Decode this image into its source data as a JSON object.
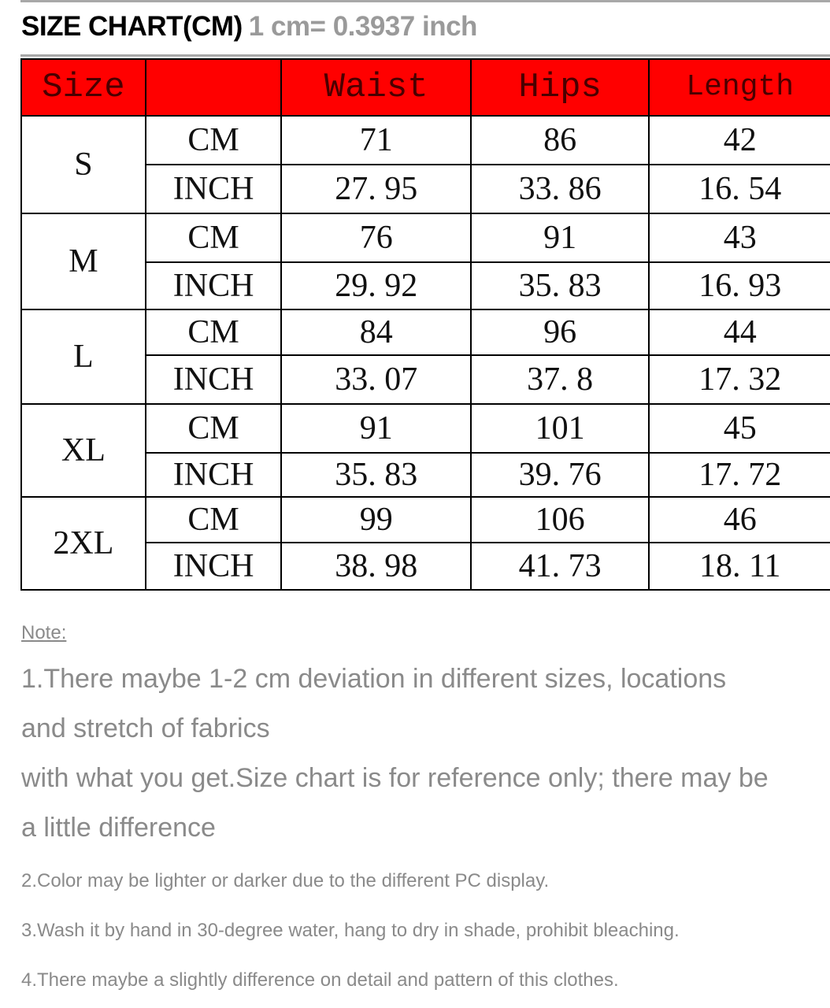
{
  "title": {
    "main": "SIZE CHART(CM)",
    "sub": "1 cm= 0.3937 inch"
  },
  "table": {
    "headers": [
      "Size",
      "",
      "Waist",
      "Hips",
      "Length"
    ],
    "rows": [
      {
        "size": "S",
        "cm": [
          "CM",
          "71",
          "86",
          "42"
        ],
        "inch": [
          "INCH",
          "27. 95",
          "33. 86",
          "16. 54"
        ]
      },
      {
        "size": "M",
        "cm": [
          "CM",
          "76",
          "91",
          "43"
        ],
        "inch": [
          "INCH",
          "29. 92",
          "35. 83",
          "16. 93"
        ]
      },
      {
        "size": "L",
        "cm": [
          "CM",
          "84",
          "96",
          "44"
        ],
        "inch": [
          "INCH",
          "33. 07",
          "37. 8",
          "17. 32"
        ]
      },
      {
        "size": "XL",
        "cm": [
          "CM",
          "91",
          "101",
          "45"
        ],
        "inch": [
          "INCH",
          "35. 83",
          "39. 76",
          "17. 72"
        ]
      },
      {
        "size": "2XL",
        "cm": [
          "CM",
          "99",
          "106",
          "46"
        ],
        "inch": [
          "INCH",
          "38. 98",
          "41. 73",
          "18. 11"
        ]
      }
    ]
  },
  "notes": {
    "label": "Note: ",
    "lines": [
      "1.There maybe 1-2 cm deviation in different sizes, locations",
      "and stretch of fabrics",
      "with what you get.Size chart is for reference only; there may be",
      "a little difference",
      "2.Color may be lighter or darker due to the different PC display.",
      "3.Wash it by hand in 30-degree water, hang to dry in shade, prohibit bleaching.",
      "4.There maybe a slightly difference on detail and pattern of this clothes."
    ]
  },
  "colors": {
    "header_bg": "#ff0000",
    "note_text": "#8a8a8a"
  }
}
